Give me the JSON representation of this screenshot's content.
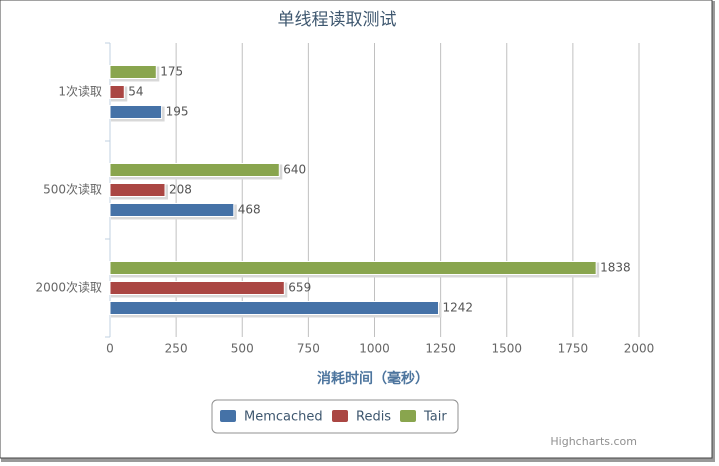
{
  "chart_data": {
    "type": "bar",
    "title": "单线程读取测试",
    "categories": [
      "1次读取",
      "500次读取",
      "2000次读取"
    ],
    "series": [
      {
        "name": "Memcached",
        "color": "#4572A7",
        "values": [
          195,
          468,
          1242
        ]
      },
      {
        "name": "Redis",
        "color": "#AA4643",
        "values": [
          54,
          208,
          659
        ]
      },
      {
        "name": "Tair",
        "color": "#89A54E",
        "values": [
          175,
          640,
          1838
        ]
      }
    ],
    "xlim": [
      0,
      2000
    ],
    "xticks": [
      0,
      250,
      500,
      750,
      1000,
      1250,
      1500,
      1750,
      2000
    ],
    "x_axis_title": "消耗时间（毫秒）",
    "grid": true,
    "legend": "bottom",
    "credits": "Highcharts.com"
  }
}
